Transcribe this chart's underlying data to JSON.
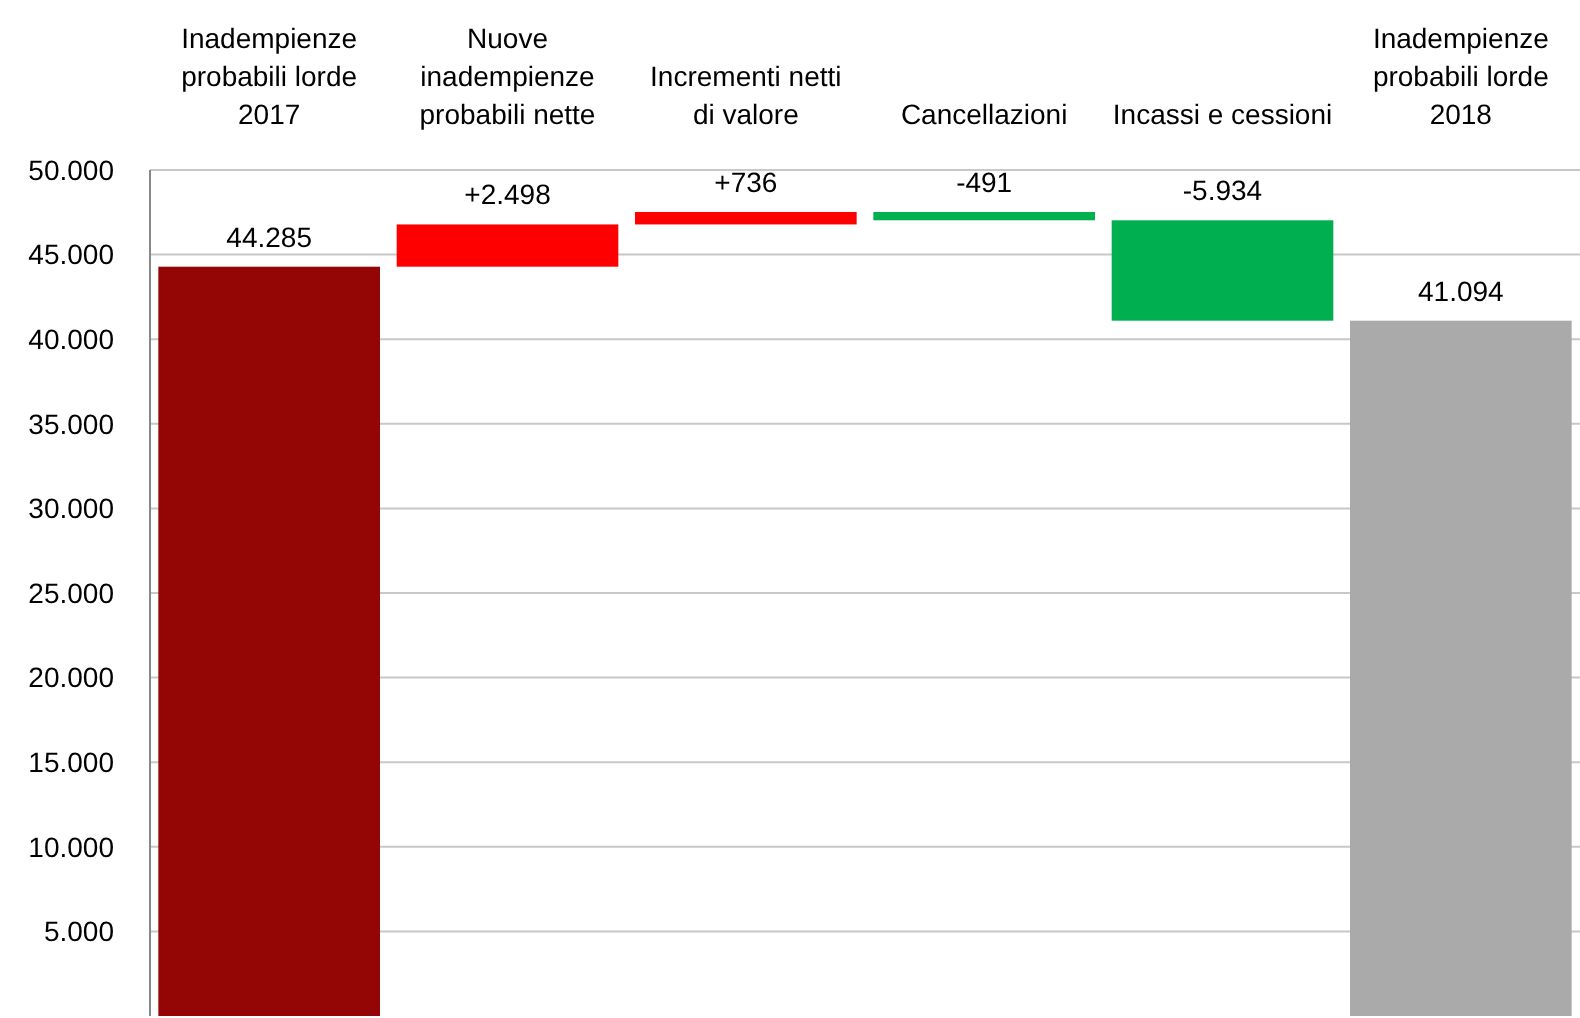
{
  "chart_data": {
    "type": "bar",
    "categories": [
      "Inadempienze\nprobabili lorde\n2017",
      "Nuove\ninadempienze\nprobabili nette",
      "Incrementi netti\ndi valore",
      "Cancellazioni",
      "Incassi e cessioni",
      "Inadempienze\nprobabili lorde\n2018"
    ],
    "values": [
      44285,
      2498,
      736,
      -491,
      -5934,
      41094
    ],
    "base": [
      0,
      44285,
      46783,
      47519,
      47028,
      0
    ],
    "colors": [
      "#940606",
      "#ff0000",
      "#ff0000",
      "#00b050",
      "#00b050",
      "#aaaaaa"
    ],
    "value_labels": [
      "44.285",
      "+2.498",
      "+736",
      "-491",
      "-5.934",
      "41.094"
    ],
    "ylim": [
      0,
      50000
    ],
    "yticks": [
      {
        "value": 5000,
        "label": "5.000"
      },
      {
        "value": 10000,
        "label": "10.000"
      },
      {
        "value": 15000,
        "label": "15.000"
      },
      {
        "value": 20000,
        "label": "20.000"
      },
      {
        "value": 25000,
        "label": "25.000"
      },
      {
        "value": 30000,
        "label": "30.000"
      },
      {
        "value": 35000,
        "label": "35.000"
      },
      {
        "value": 40000,
        "label": "40.000"
      },
      {
        "value": 45000,
        "label": "45.000"
      },
      {
        "value": 50000,
        "label": "50.000"
      }
    ],
    "grid": true
  }
}
